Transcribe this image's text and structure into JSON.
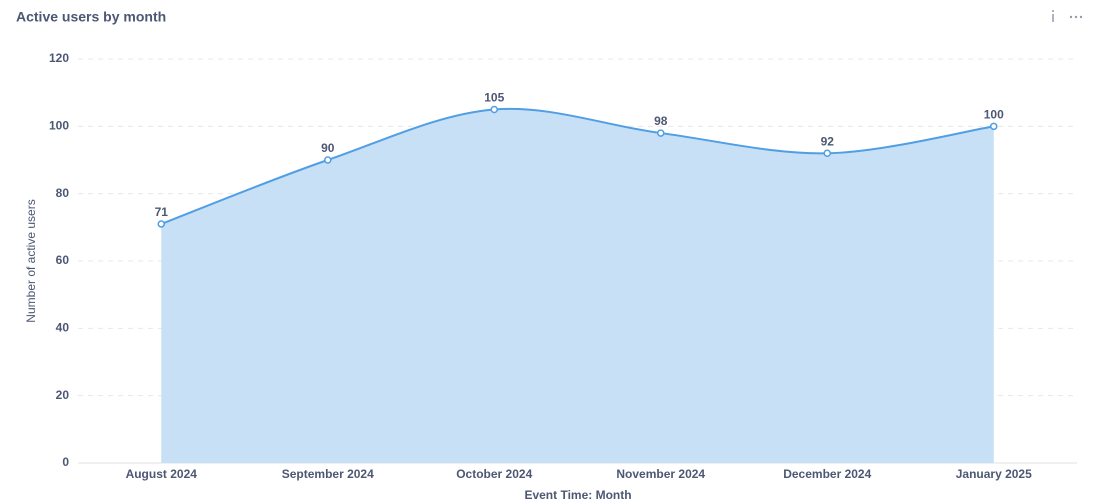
{
  "chart_data": {
    "type": "area",
    "title": "Active users by month",
    "x_label": "Event Time: Month",
    "y_label": "Number of active users",
    "categories": [
      "August 2024",
      "September 2024",
      "October 2024",
      "November 2024",
      "December 2024",
      "January 2025"
    ],
    "values": [
      71,
      90,
      105,
      98,
      92,
      100
    ],
    "color": "#509ee3",
    "fill_color": "#c8e0f6",
    "ylim": [
      0,
      120
    ],
    "yticks": [
      0,
      20,
      40,
      60,
      80,
      100,
      120
    ],
    "grid": true
  }
}
